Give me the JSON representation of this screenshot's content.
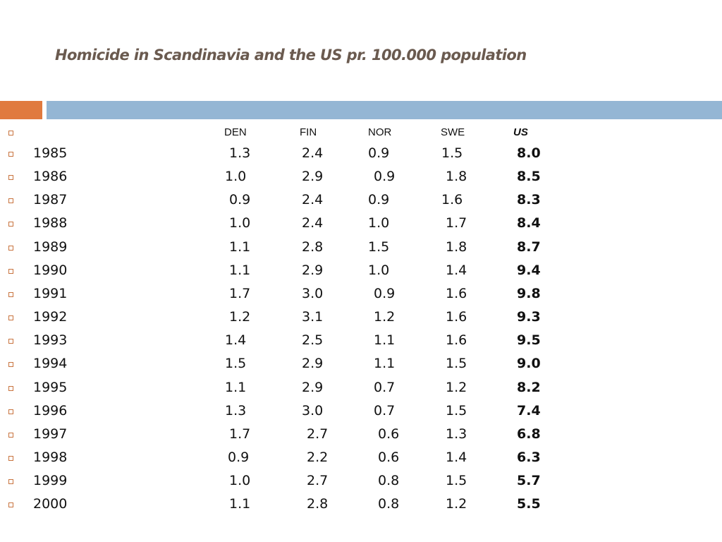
{
  "slide": {
    "title": "Homicide in Scandinavia and the US pr. 100.000 population"
  },
  "colors": {
    "title": "#6a5a4f",
    "accent_orange": "#e07a3f",
    "accent_blue": "#94b6d4",
    "bullet": "#c8733e"
  },
  "table": {
    "headers": [
      "",
      "DEN",
      "FIN",
      "NOR",
      "SWE",
      "US"
    ],
    "rows": [
      {
        "year": "1985",
        "den": "1.3",
        "fin": "2.4",
        "nor": "0.9",
        "swe": "1.5",
        "us": "8.0"
      },
      {
        "year": "1986",
        "den": "1.0",
        "fin": "2.9",
        "nor": "0.9",
        "swe": "1.8",
        "us": "8.5"
      },
      {
        "year": "1987",
        "den": "0.9",
        "fin": "2.4",
        "nor": "0.9",
        "swe": "1.6",
        "us": "8.3"
      },
      {
        "year": "1988",
        "den": "1.0",
        "fin": "2.4",
        "nor": "1.0",
        "swe": "1.7",
        "us": "8.4"
      },
      {
        "year": "1989",
        "den": "1.1",
        "fin": "2.8",
        "nor": "1.5",
        "swe": "1.8",
        "us": "8.7"
      },
      {
        "year": "1990",
        "den": "1.1",
        "fin": "2.9",
        "nor": "1.0",
        "swe": "1.4",
        "us": "9.4"
      },
      {
        "year": "1991",
        "den": "1.7",
        "fin": "3.0",
        "nor": "0.9",
        "swe": "1.6",
        "us": "9.8"
      },
      {
        "year": "1992",
        "den": "1.2",
        "fin": "3.1",
        "nor": "1.2",
        "swe": "1.6",
        "us": "9.3"
      },
      {
        "year": "1993",
        "den": "1.4",
        "fin": "2.5",
        "nor": "1.1",
        "swe": "1.6",
        "us": "9.5"
      },
      {
        "year": "1994",
        "den": "1.5",
        "fin": "2.9",
        "nor": "1.1",
        "swe": "1.5",
        "us": "9.0"
      },
      {
        "year": "1995",
        "den": "1.1",
        "fin": "2.9",
        "nor": "0.7",
        "swe": "1.2",
        "us": "8.2"
      },
      {
        "year": "1996",
        "den": "1.3",
        "fin": "3.0",
        "nor": "0.7",
        "swe": "1.5",
        "us": "7.4"
      },
      {
        "year": "1997",
        "den": "1.7",
        "fin": "2.7",
        "nor": "0.6",
        "swe": "1.3",
        "us": "6.8"
      },
      {
        "year": "1998",
        "den": "0.9",
        "fin": "2.2",
        "nor": "0.6",
        "swe": "1.4",
        "us": "6.3"
      },
      {
        "year": "1999",
        "den": "1.0",
        "fin": "2.7",
        "nor": "0.8",
        "swe": "1.5",
        "us": "5.7"
      },
      {
        "year": "2000",
        "den": "1.1",
        "fin": "2.8",
        "nor": "0.8",
        "swe": "1.2",
        "us": "5.5"
      }
    ]
  }
}
